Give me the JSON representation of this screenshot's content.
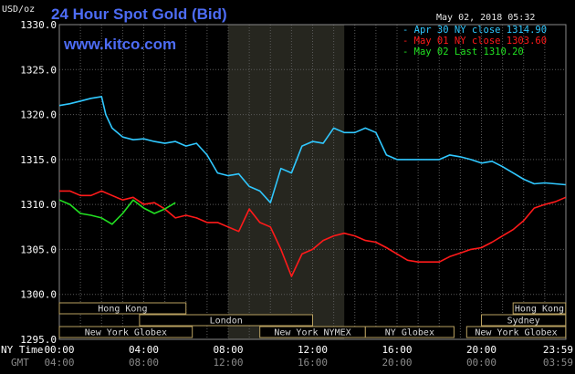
{
  "header": {
    "title": "24 Hour Spot Gold (Bid)",
    "date": "May 02, 2018 05:32",
    "units": "USD/oz",
    "website": "www.kitco.com"
  },
  "legend": [
    {
      "label": "Apr 30 NY close 1314.90",
      "color": "#30c8ff"
    },
    {
      "label": "May 01 NY close 1303.60",
      "color": "#ff1a1a"
    },
    {
      "label": "May 02 Last 1310.20",
      "color": "#22e022"
    }
  ],
  "x_axis": {
    "ny_label": "NY Time",
    "gmt_label": "GMT",
    "ny_ticks": [
      "00:00",
      "04:00",
      "08:00",
      "12:00",
      "16:00",
      "20:00",
      "23:59"
    ],
    "gmt_ticks": [
      "04:00",
      "08:00",
      "12:00",
      "16:00",
      "20:00",
      "00:00",
      "03:59"
    ]
  },
  "sessions": [
    {
      "label": "Hong Kong",
      "start_hour": 0.0,
      "end_hour": 6.0
    },
    {
      "label": "London",
      "start_hour": 3.8,
      "end_hour": 12.0
    },
    {
      "label": "New York Globex",
      "start_hour": 0.0,
      "end_hour": 6.3
    },
    {
      "label": "New York NYMEX",
      "start_hour": 9.5,
      "end_hour": 14.5
    },
    {
      "label": "NY Globex",
      "start_hour": 14.5,
      "end_hour": 18.7
    },
    {
      "label": "Hong Kong",
      "start_hour": 21.5,
      "end_hour": 23.99
    },
    {
      "label": "Sydney",
      "start_hour": 20.0,
      "end_hour": 23.99
    },
    {
      "label": "New York Globex",
      "start_hour": 19.3,
      "end_hour": 23.99
    }
  ],
  "chart_data": {
    "type": "line",
    "title": "24 Hour Spot Gold (Bid)",
    "ylabel": "USD/oz",
    "xlabel": "NY Time",
    "xlim": [
      0,
      24
    ],
    "ylim": [
      1295,
      1330
    ],
    "yticks": [
      1295.0,
      1300.0,
      1305.0,
      1310.0,
      1315.0,
      1320.0,
      1325.0,
      1330.0
    ],
    "grid": true,
    "legend_position": "top-right",
    "highlight_range_hours": [
      8.0,
      13.5
    ],
    "series": [
      {
        "name": "Apr 30 NY close 1314.90",
        "color": "#30c8ff",
        "x": [
          0,
          0.5,
          1.0,
          1.5,
          2.0,
          2.2,
          2.5,
          3.0,
          3.5,
          4.0,
          4.5,
          5.0,
          5.5,
          6.0,
          6.5,
          7.0,
          7.5,
          8.0,
          8.5,
          9.0,
          9.5,
          10.0,
          10.5,
          11.0,
          11.5,
          12.0,
          12.5,
          13.0,
          13.5,
          14.0,
          14.5,
          15.0,
          15.5,
          16.0,
          16.5,
          17.0,
          17.5,
          18.0,
          18.5,
          19.0,
          19.5,
          20.0,
          20.5,
          21.0,
          21.5,
          22.0,
          22.5,
          23.0,
          23.5,
          23.99
        ],
        "y": [
          1321.0,
          1321.2,
          1321.5,
          1321.8,
          1322.0,
          1320.0,
          1318.5,
          1317.5,
          1317.2,
          1317.3,
          1317.0,
          1316.8,
          1317.0,
          1316.5,
          1316.8,
          1315.5,
          1313.5,
          1313.2,
          1313.4,
          1312.0,
          1311.5,
          1310.2,
          1314.0,
          1313.5,
          1316.5,
          1317.0,
          1316.8,
          1318.5,
          1318.0,
          1318.0,
          1318.5,
          1318.0,
          1315.5,
          1315.0,
          1315.0,
          1315.0,
          1315.0,
          1315.0,
          1315.5,
          1315.3,
          1315.0,
          1314.6,
          1314.8,
          1314.2,
          1313.5,
          1312.8,
          1312.3,
          1312.4,
          1312.3,
          1312.2
        ]
      },
      {
        "name": "May 01 NY close 1303.60",
        "color": "#ff1a1a",
        "x": [
          0,
          0.5,
          1.0,
          1.5,
          2.0,
          2.5,
          3.0,
          3.5,
          4.0,
          4.5,
          5.0,
          5.5,
          6.0,
          6.5,
          7.0,
          7.5,
          8.0,
          8.5,
          9.0,
          9.5,
          10.0,
          10.5,
          11.0,
          11.5,
          12.0,
          12.5,
          13.0,
          13.5,
          14.0,
          14.5,
          15.0,
          15.5,
          16.0,
          16.5,
          17.0,
          17.5,
          18.0,
          18.5,
          19.0,
          19.5,
          20.0,
          20.5,
          21.0,
          21.5,
          22.0,
          22.5,
          23.0,
          23.5,
          23.99
        ],
        "y": [
          1311.5,
          1311.5,
          1311.0,
          1311.0,
          1311.5,
          1311.0,
          1310.5,
          1310.8,
          1310.0,
          1310.2,
          1309.5,
          1308.5,
          1308.8,
          1308.5,
          1308.0,
          1308.0,
          1307.5,
          1307.0,
          1309.5,
          1308.0,
          1307.5,
          1305.0,
          1302.0,
          1304.5,
          1305.0,
          1306.0,
          1306.5,
          1306.8,
          1306.5,
          1306.0,
          1305.8,
          1305.2,
          1304.5,
          1303.8,
          1303.6,
          1303.6,
          1303.6,
          1304.2,
          1304.6,
          1305.0,
          1305.2,
          1305.8,
          1306.5,
          1307.2,
          1308.2,
          1309.6,
          1310.0,
          1310.3,
          1310.8
        ]
      },
      {
        "name": "May 02 Last 1310.20",
        "color": "#22e022",
        "x": [
          0,
          0.5,
          1.0,
          1.5,
          2.0,
          2.5,
          3.0,
          3.5,
          4.0,
          4.5,
          5.0,
          5.5
        ],
        "y": [
          1310.5,
          1310.0,
          1309.0,
          1308.8,
          1308.5,
          1307.8,
          1309.0,
          1310.5,
          1309.6,
          1309.0,
          1309.5,
          1310.2
        ]
      }
    ]
  }
}
